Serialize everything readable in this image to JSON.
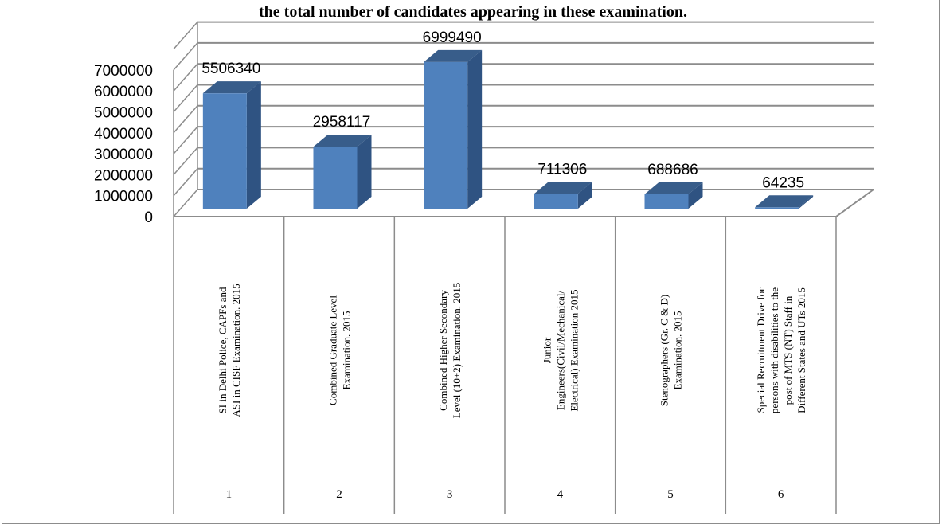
{
  "chart_data": {
    "type": "bar",
    "title": "the total number of candidates appearing in these examination.",
    "categories": [
      {
        "number": "1",
        "lines": [
          "SI in Delhi Police, CAPFs and",
          "ASI in CISF Examination. 2015"
        ]
      },
      {
        "number": "2",
        "lines": [
          "Combined Graduate Level",
          "Examination. 2015"
        ]
      },
      {
        "number": "3",
        "lines": [
          "Combined Higher Secondary",
          "Level (10+2) Examination. 2015"
        ]
      },
      {
        "number": "4",
        "lines": [
          "Junior",
          "Engineers(Civil/Mechanical/",
          "Electrical) Examination 2015"
        ]
      },
      {
        "number": "5",
        "lines": [
          "Stenographers (Gr. C & D)",
          "Examination. 2015"
        ]
      },
      {
        "number": "6",
        "lines": [
          "Special Recruitment Drive for",
          "persons with disabilities to the",
          "post of MTS (NT) Staff in",
          "Different States and UTs 2015"
        ]
      }
    ],
    "values": [
      5506340,
      2958117,
      6999490,
      711306,
      688686,
      64235
    ],
    "yticks": [
      "0",
      "1000000",
      "2000000",
      "3000000",
      "4000000",
      "5000000",
      "6000000",
      "7000000"
    ],
    "ylim": [
      0,
      8000000
    ],
    "grid": true,
    "colors": {
      "front": "#4f81bd",
      "side": "#2f5382",
      "top": "#385d8a",
      "grid": "#8c8c8c"
    }
  }
}
